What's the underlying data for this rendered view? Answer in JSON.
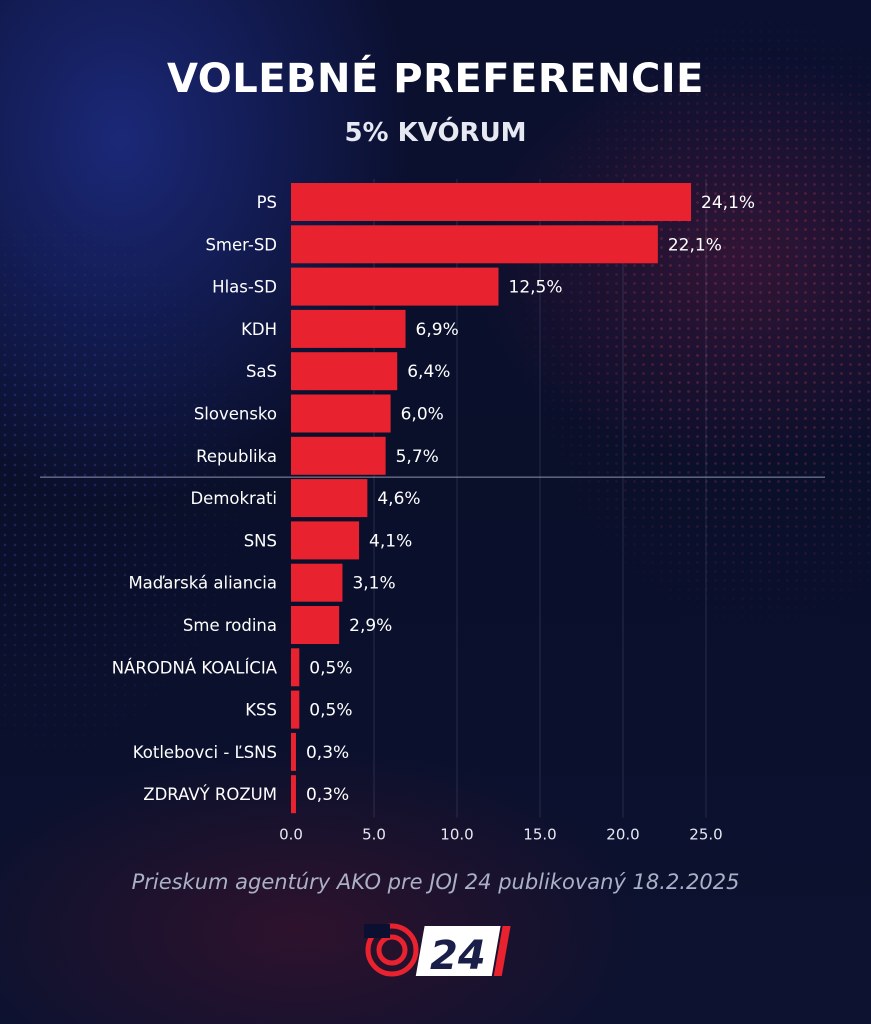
{
  "header": {
    "title": "VOLEBNÉ PREFERENCIE",
    "subtitle": "5% KVÓRUM"
  },
  "footnote": "Prieskum agentúry AKO pre JOJ 24 publikovaný 18.2.2025",
  "logo": {
    "text": "24",
    "icon": "joj-circle-logo-icon"
  },
  "colors": {
    "bar": "#e8232f",
    "threshold_line": "#8c92ad",
    "text": "#ffffff",
    "tick": "#e6e8f2"
  },
  "chart_data": {
    "type": "bar",
    "orientation": "horizontal",
    "categories": [
      "PS",
      "Smer-SD",
      "Hlas-SD",
      "KDH",
      "SaS",
      "Slovensko",
      "Republika",
      "Demokrati",
      "SNS",
      "Maďarská aliancia",
      "Sme rodina",
      "NÁRODNÁ KOALÍCIA",
      "KSS",
      "Kotlebovci - ĽSNS",
      "ZDRAVÝ ROZUM"
    ],
    "values": [
      24.1,
      22.1,
      12.5,
      6.9,
      6.4,
      6.0,
      5.7,
      4.6,
      4.1,
      3.1,
      2.9,
      0.5,
      0.5,
      0.3,
      0.3
    ],
    "value_labels": [
      "24,1%",
      "22,1%",
      "12,5%",
      "6,9%",
      "6,4%",
      "6,0%",
      "5,7%",
      "4,6%",
      "4,1%",
      "3,1%",
      "2,9%",
      "0,5%",
      "0,5%",
      "0,3%",
      "0,3%"
    ],
    "x_ticks": [
      "0.0",
      "5.0",
      "10.0",
      "15.0",
      "20.0",
      "25.0"
    ],
    "xlim": [
      0,
      25
    ],
    "threshold_after_category": "Republika",
    "grid": "vertical",
    "legend": "none"
  }
}
